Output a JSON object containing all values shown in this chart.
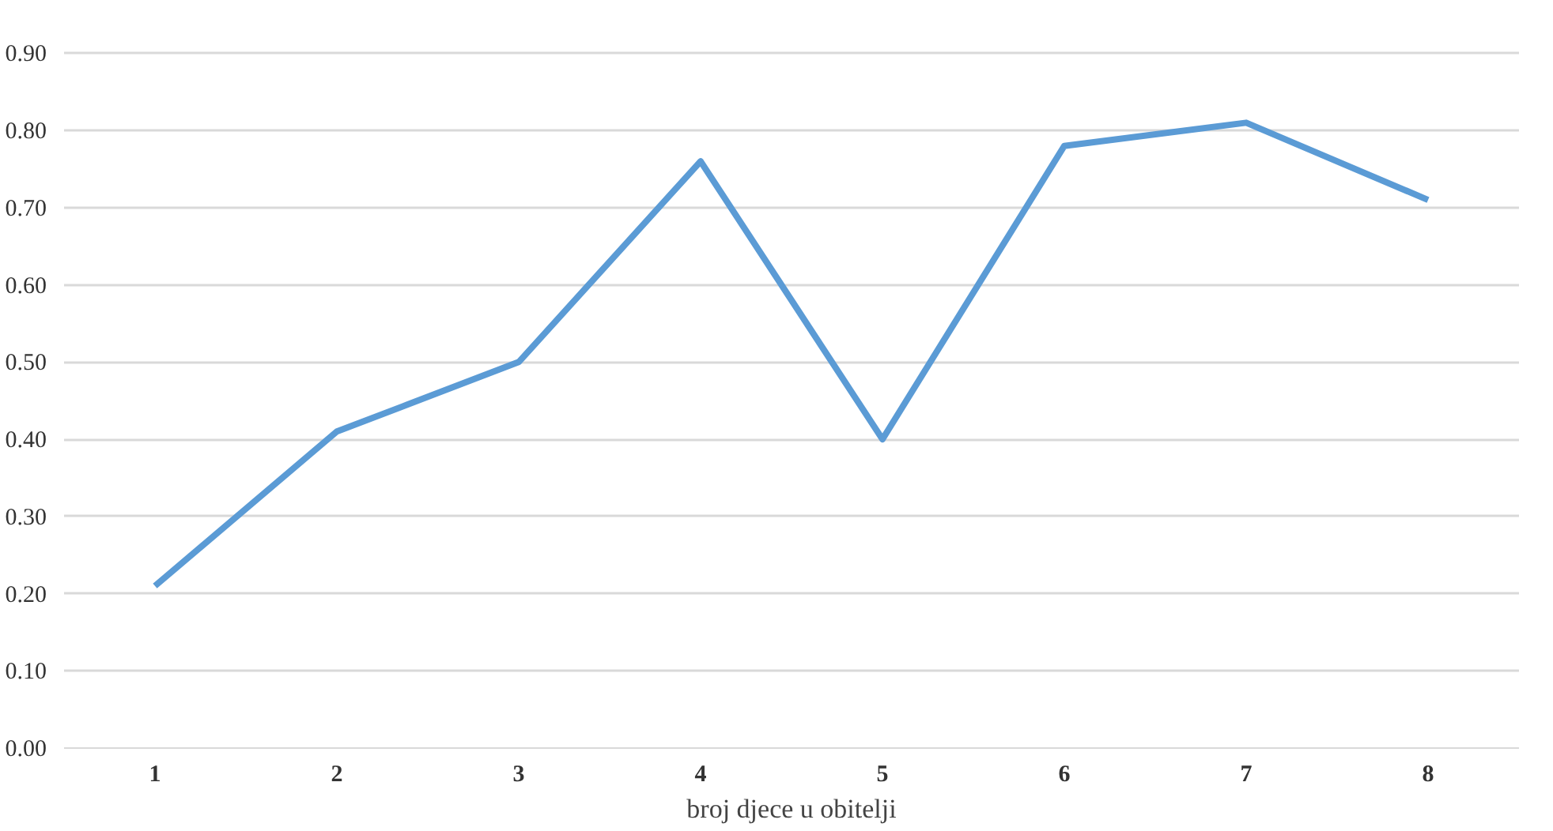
{
  "chart_data": {
    "type": "line",
    "xlabel": "broj djece u obitelji",
    "categories": [
      "1",
      "2",
      "3",
      "4",
      "5",
      "6",
      "7",
      "8"
    ],
    "series": [
      {
        "color": "#5b9bd5",
        "values": [
          0.21,
          0.41,
          0.5,
          0.76,
          0.4,
          0.78,
          0.81,
          0.71
        ]
      }
    ],
    "ylim": [
      0,
      0.9
    ],
    "yticks": [
      {
        "value": 0,
        "label": "0.00"
      },
      {
        "value": 0.1,
        "label": "0.10"
      },
      {
        "value": 0.2,
        "label": "0.20"
      },
      {
        "value": 0.3,
        "label": "0.30"
      },
      {
        "value": 0.4,
        "label": "0.40"
      },
      {
        "value": 0.5,
        "label": "0.50"
      },
      {
        "value": 0.6,
        "label": "0.60"
      },
      {
        "value": 0.7,
        "label": "0.70"
      },
      {
        "value": 0.8,
        "label": "0.80"
      },
      {
        "value": 0.9,
        "label": "0.90"
      }
    ],
    "grid": "y",
    "marker": "none",
    "line_style": "solid"
  }
}
